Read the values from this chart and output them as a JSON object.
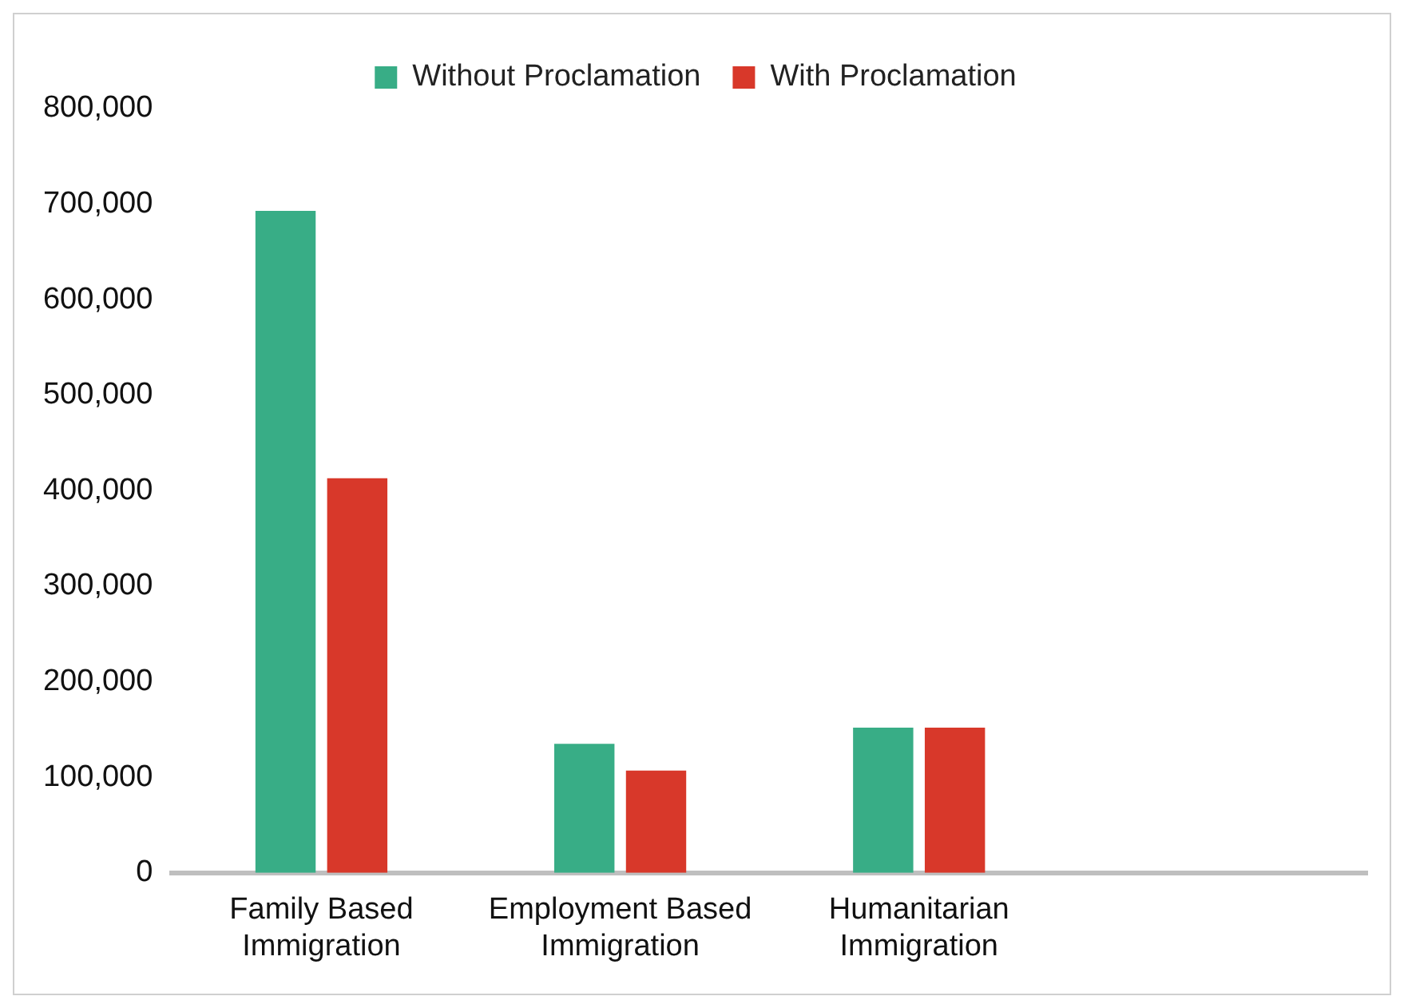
{
  "chart_data": {
    "type": "bar",
    "categories": [
      "Family Based Immigration",
      "Employment Based Immigration",
      "Humanitarian Immigration",
      null
    ],
    "series": [
      {
        "name": "Without Proclamation",
        "color": "#38ad86",
        "values": [
          693000,
          135000,
          152000,
          null
        ]
      },
      {
        "name": "With Proclamation",
        "color": "#d8382a",
        "values": [
          413000,
          107000,
          152000,
          null
        ]
      }
    ],
    "ylim": [
      0,
      800000
    ],
    "yticks": [
      0,
      {
        "value": 100000,
        "label": "100,000"
      },
      {
        "value": 200000,
        "label": "200,000"
      },
      {
        "value": 300000,
        "label": "300,000"
      },
      {
        "value": 400000,
        "label": "400,000"
      },
      {
        "value": 500000,
        "label": "500,000"
      },
      {
        "value": 600000,
        "label": "600,000"
      },
      {
        "value": 700000,
        "label": "700,000"
      },
      {
        "value": 800000,
        "label": "800,000"
      }
    ],
    "grid": false,
    "legend": "top"
  }
}
